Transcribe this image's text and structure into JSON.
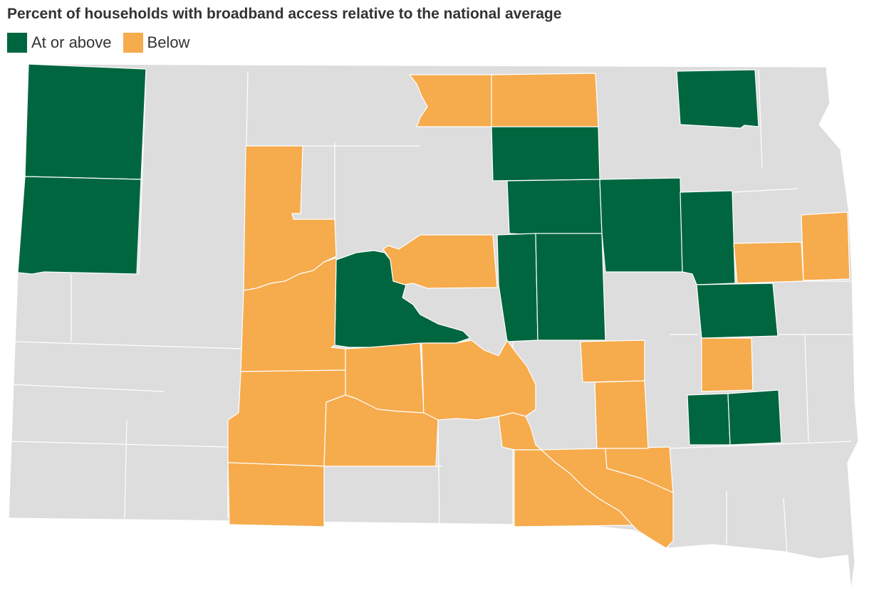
{
  "title": "Percent of households with broadband access relative to the national average",
  "legend": [
    {
      "label": "At or above",
      "color": "#00663f"
    },
    {
      "label": "Below",
      "color": "#f6ab4c"
    }
  ],
  "colors": {
    "above": "#00663f",
    "below": "#f6ab4c",
    "nodata": "#dddddd",
    "border": "#ffffff"
  }
}
